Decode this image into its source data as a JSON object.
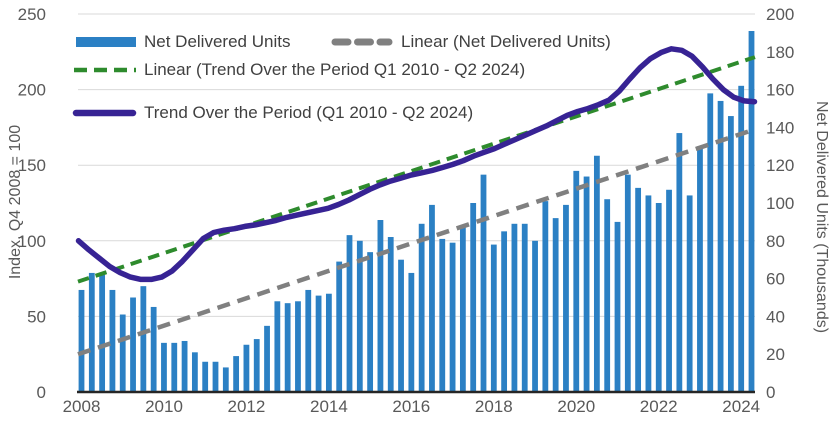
{
  "chart_data": {
    "type": "bar",
    "subtype": "combo-bar-and-lines",
    "title": "",
    "x_axis": {
      "tick_labels": [
        "2008",
        "2010",
        "2012",
        "2014",
        "2016",
        "2018",
        "2020",
        "2022",
        "2024"
      ],
      "frequency": "quarterly",
      "range_start": "Q1 2008",
      "range_end": "Q2 2024"
    },
    "left_axis": {
      "title": "Index, Q4 2008 = 100",
      "min": 0,
      "max": 250,
      "tick_step": 50,
      "tick_values": [
        0,
        50,
        100,
        150,
        200,
        250
      ],
      "tick_labels": [
        "0",
        "50",
        "100",
        "150",
        "200",
        "250"
      ]
    },
    "right_axis": {
      "title": "Net Delivered Units (Thousands)",
      "min": 0,
      "max": 200,
      "tick_step": 20,
      "tick_values": [
        0,
        20,
        40,
        60,
        80,
        100,
        120,
        140,
        160,
        180,
        200
      ],
      "tick_labels": [
        "0",
        "20",
        "40",
        "60",
        "80",
        "100",
        "120",
        "140",
        "160",
        "180",
        "200"
      ]
    },
    "legend": [
      {
        "label": "Net Delivered Units",
        "style": "bar-swatch",
        "color": "#2b80c4"
      },
      {
        "label": "Linear (Net Delivered Units)",
        "style": "thick-dash",
        "color": "#808080"
      },
      {
        "label": "Linear (Trend Over the Period Q1 2010 - Q2 2024)",
        "style": "dash",
        "color": "#2e8b2d"
      },
      {
        "label": "Trend Over the Period (Q1 2010 - Q2 2024)",
        "style": "solid",
        "color": "#372394"
      }
    ],
    "series": [
      {
        "name": "Net Delivered Units",
        "type": "bar",
        "axis": "right",
        "color": "#2b80c4",
        "values": [
          54,
          63,
          62,
          54,
          41,
          50,
          56,
          45,
          26,
          26,
          27,
          21,
          16,
          16,
          13,
          19,
          25,
          28,
          35,
          48,
          47,
          48,
          54,
          51,
          52,
          69,
          83,
          80,
          74,
          91,
          82,
          70,
          63,
          89,
          99,
          81,
          79,
          88,
          100,
          115,
          78,
          85,
          89,
          89,
          80,
          101,
          92,
          99,
          117,
          114,
          125,
          102,
          90,
          115,
          108,
          104,
          100,
          107,
          137,
          104,
          130,
          158,
          154,
          146,
          162,
          191
        ]
      },
      {
        "name": "Trend Over the Period (Q1 2010 - Q2 2024)",
        "type": "line",
        "axis": "left",
        "color": "#372394",
        "values": [
          100,
          94,
          88.5,
          83,
          79,
          76,
          74.5,
          74.5,
          76,
          80,
          86.5,
          94,
          101.5,
          105.5,
          107,
          108,
          109.5,
          110.5,
          112,
          113.5,
          115.5,
          117,
          118.5,
          120,
          121.5,
          124,
          127,
          130.5,
          134,
          137,
          139.5,
          141.5,
          143.5,
          145,
          146.5,
          148.5,
          150.5,
          153,
          156,
          158.5,
          161,
          164,
          167,
          170,
          173,
          176,
          179.5,
          183,
          185.5,
          187.5,
          190,
          193,
          199,
          207,
          214.5,
          220.5,
          224.5,
          227,
          226,
          222,
          215,
          207,
          200,
          195,
          192.5,
          192
        ]
      },
      {
        "name": "Linear (Trend Over the Period Q1 2010 - Q2 2024)",
        "type": "linear",
        "axis": "left",
        "color": "#2e8b2d",
        "start_value": 73,
        "end_value": 221.5
      },
      {
        "name": "Linear (Net Delivered Units)",
        "type": "linear",
        "axis": "right",
        "color": "#808080",
        "start_value": 20,
        "end_value": 139
      }
    ],
    "layout": {
      "grid": "horizontal",
      "gridline_color": "#d9d9d9",
      "axis_line_color": "#262626",
      "tick_text_color": "#595959",
      "legend_text_color": "#404040",
      "legend_position": "inside-top-left"
    }
  }
}
